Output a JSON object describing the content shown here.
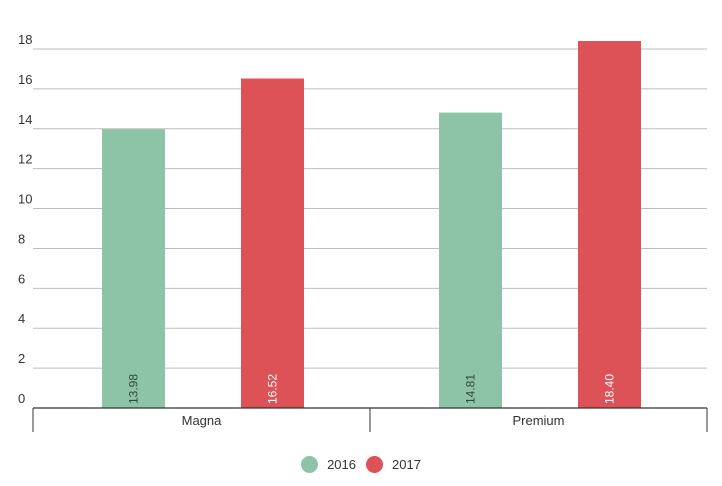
{
  "chart_data": {
    "type": "bar",
    "title": "",
    "xlabel": "",
    "ylabel": "",
    "categories": [
      "Magna",
      "Premium"
    ],
    "series": [
      {
        "name": "2016",
        "values": [
          13.98,
          14.81
        ],
        "labels": [
          "13.98",
          "14.81"
        ],
        "color": "#8dc4a7"
      },
      {
        "name": "2017",
        "values": [
          16.52,
          18.4
        ],
        "labels": [
          "16.52",
          "18.40"
        ],
        "color": "#dd5257"
      }
    ],
    "ylim": [
      0,
      18
    ],
    "yticks": [
      0,
      2,
      4,
      6,
      8,
      10,
      12,
      14,
      16,
      18
    ],
    "grid": true,
    "legend_position": "bottom-center",
    "data_label_style": "rotated-inside-bar-bottom"
  }
}
